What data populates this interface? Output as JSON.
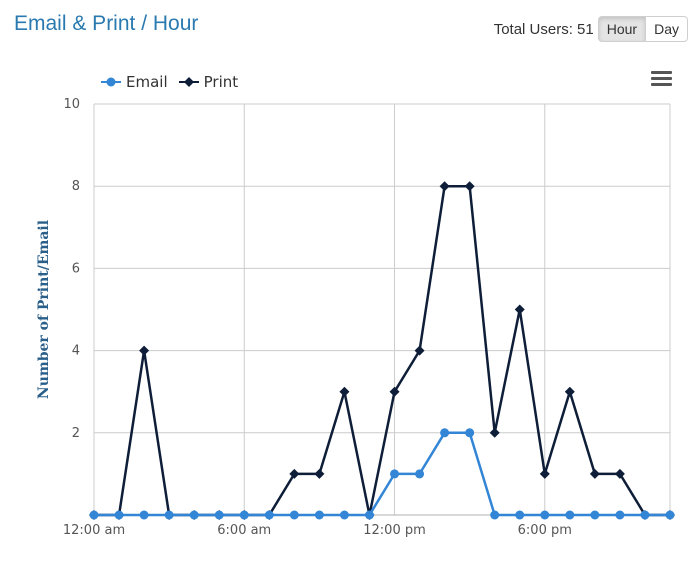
{
  "header": {
    "title": "Email & Print / Hour",
    "total_users": "Total Users: 51",
    "buttons": {
      "hour": "Hour",
      "day": "Day"
    },
    "active_button": "hour"
  },
  "menu_icon": "hamburger-menu-icon",
  "colors": {
    "title": "#2a7ab0",
    "email": "#3385d6",
    "print": "#0e1e38",
    "grid": "#cccccc"
  },
  "chart_data": {
    "type": "line",
    "x": [
      0,
      1,
      2,
      3,
      4,
      5,
      6,
      7,
      8,
      9,
      10,
      11,
      12,
      13,
      14,
      15,
      16,
      17,
      18,
      19,
      20,
      21,
      22,
      23
    ],
    "xticks": [
      {
        "x": 0,
        "label": "12:00 am"
      },
      {
        "x": 6,
        "label": "6:00 am"
      },
      {
        "x": 12,
        "label": "12:00 pm"
      },
      {
        "x": 18,
        "label": "6:00 pm"
      }
    ],
    "ylim": [
      0,
      10
    ],
    "yticks": [
      2,
      4,
      6,
      8,
      10
    ],
    "ylabel": "Number of Print/Email",
    "xlabel": "",
    "grid": true,
    "legend_position": "top-left",
    "series": [
      {
        "name": "Email",
        "color": "#3385d6",
        "marker": "circle",
        "values": [
          0,
          0,
          0,
          0,
          0,
          0,
          0,
          0,
          0,
          0,
          0,
          0,
          1,
          1,
          2,
          2,
          0,
          0,
          0,
          0,
          0,
          0,
          0,
          0
        ]
      },
      {
        "name": "Print",
        "color": "#0e1e38",
        "marker": "diamond",
        "values": [
          0,
          0,
          4,
          0,
          0,
          0,
          0,
          0,
          1,
          1,
          3,
          0,
          3,
          4,
          8,
          8,
          2,
          5,
          1,
          3,
          1,
          1,
          0,
          0
        ]
      }
    ]
  }
}
